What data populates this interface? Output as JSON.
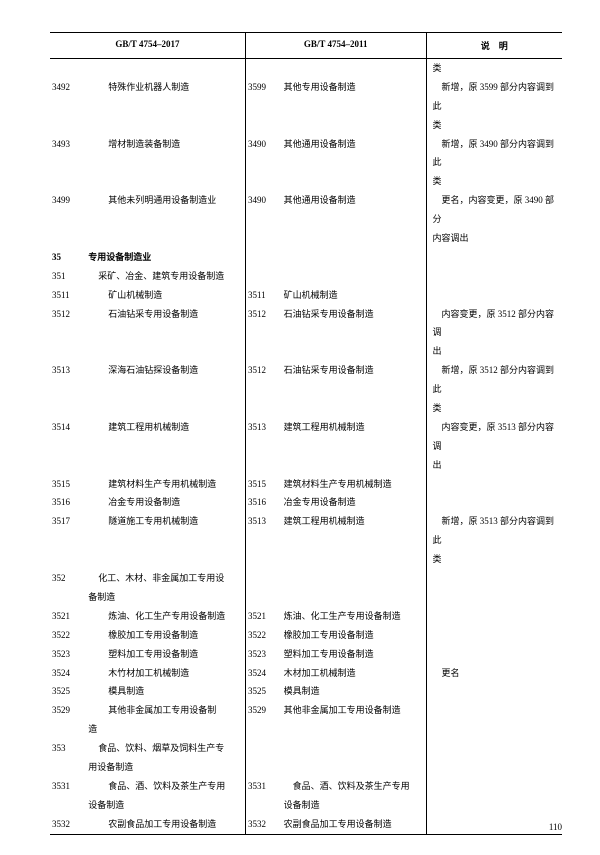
{
  "headers": {
    "h2017": "GB/T 4754–2017",
    "h2011": "GB/T 4754–2011",
    "note": "说　明"
  },
  "rows": [
    {
      "c1": "",
      "n1": "",
      "c2": "",
      "n2": "",
      "note": "类",
      "i": 0
    },
    {
      "c1": "3492",
      "n1": "特殊作业机器人制造",
      "c2": "3599",
      "n2": "其他专用设备制造",
      "note": "　新增，原 3599 部分内容调到此",
      "i": 2
    },
    {
      "c1": "",
      "n1": "",
      "c2": "",
      "n2": "",
      "note": "类",
      "i": 0
    },
    {
      "c1": "3493",
      "n1": "增材制造装备制造",
      "c2": "3490",
      "n2": "其他通用设备制造",
      "note": "　新增，原 3490 部分内容调到此",
      "i": 2
    },
    {
      "c1": "",
      "n1": "",
      "c2": "",
      "n2": "",
      "note": "类",
      "i": 0
    },
    {
      "c1": "3499",
      "n1": "其他未列明通用设备制造业",
      "c2": "3490",
      "n2": "其他通用设备制造",
      "note": "　更名，内容变更，原 3490 部分",
      "i": 2
    },
    {
      "c1": "",
      "n1": "",
      "c2": "",
      "n2": "",
      "note": "内容调出",
      "i": 0
    },
    {
      "c1": "35",
      "n1": "专用设备制造业",
      "c2": "",
      "n2": "",
      "note": "",
      "bold": true,
      "i": 0
    },
    {
      "c1": "351",
      "n1": "采矿、冶金、建筑专用设备制造",
      "c2": "",
      "n2": "",
      "note": "",
      "i": 1
    },
    {
      "c1": "3511",
      "n1": "矿山机械制造",
      "c2": "3511",
      "n2": "矿山机械制造",
      "note": "",
      "i": 2
    },
    {
      "c1": "3512",
      "n1": "石油钻采专用设备制造",
      "c2": "3512",
      "n2": "石油钻采专用设备制造",
      "note": "　内容变更，原 3512 部分内容调",
      "i": 2
    },
    {
      "c1": "",
      "n1": "",
      "c2": "",
      "n2": "",
      "note": "出",
      "i": 0
    },
    {
      "c1": "3513",
      "n1": "深海石油钻探设备制造",
      "c2": "3512",
      "n2": "石油钻采专用设备制造",
      "note": "　新增，原 3512 部分内容调到此",
      "i": 2
    },
    {
      "c1": "",
      "n1": "",
      "c2": "",
      "n2": "",
      "note": "类",
      "i": 0
    },
    {
      "c1": "3514",
      "n1": "建筑工程用机械制造",
      "c2": "3513",
      "n2": "建筑工程用机械制造",
      "note": "　内容变更，原 3513 部分内容调",
      "i": 2
    },
    {
      "c1": "",
      "n1": "",
      "c2": "",
      "n2": "",
      "note": "出",
      "i": 0
    },
    {
      "c1": "3515",
      "n1": "建筑材料生产专用机械制造",
      "c2": "3515",
      "n2": "建筑材料生产专用机械制造",
      "note": "",
      "i": 2
    },
    {
      "c1": "3516",
      "n1": "冶金专用设备制造",
      "c2": "3516",
      "n2": "冶金专用设备制造",
      "note": "",
      "i": 2
    },
    {
      "c1": "3517",
      "n1": "隧道施工专用机械制造",
      "c2": "3513",
      "n2": "建筑工程用机械制造",
      "note": "　新增，原 3513 部分内容调到此",
      "i": 2
    },
    {
      "c1": "",
      "n1": "",
      "c2": "",
      "n2": "",
      "note": "类",
      "i": 0
    },
    {
      "c1": "352",
      "n1": "化工、木材、非金属加工专用设",
      "c2": "",
      "n2": "",
      "note": "",
      "i": 1
    },
    {
      "c1": "",
      "n1": "备制造",
      "c2": "",
      "n2": "",
      "note": "",
      "i": 1,
      "cont": true
    },
    {
      "c1": "3521",
      "n1": "炼油、化工生产专用设备制造",
      "c2": "3521",
      "n2": "炼油、化工生产专用设备制造",
      "note": "",
      "i": 2
    },
    {
      "c1": "3522",
      "n1": "橡胶加工专用设备制造",
      "c2": "3522",
      "n2": "橡胶加工专用设备制造",
      "note": "",
      "i": 2
    },
    {
      "c1": "3523",
      "n1": "塑料加工专用设备制造",
      "c2": "3523",
      "n2": "塑料加工专用设备制造",
      "note": "",
      "i": 2
    },
    {
      "c1": "3524",
      "n1": "木竹材加工机械制造",
      "c2": "3524",
      "n2": "木材加工机械制造",
      "note": "　更名",
      "i": 2
    },
    {
      "c1": "3525",
      "n1": "模具制造",
      "c2": "3525",
      "n2": "模具制造",
      "note": "",
      "i": 2
    },
    {
      "c1": "3529",
      "n1": "其他非金属加工专用设备制",
      "c2": "3529",
      "n2": "其他非金属加工专用设备制造",
      "note": "",
      "i": 2
    },
    {
      "c1": "",
      "n1": "造",
      "c2": "",
      "n2": "",
      "note": "",
      "i": 2,
      "cont": true
    },
    {
      "c1": "353",
      "n1": "食品、饮料、烟草及饲料生产专",
      "c2": "",
      "n2": "",
      "note": "",
      "i": 1
    },
    {
      "c1": "",
      "n1": "用设备制造",
      "c2": "",
      "n2": "",
      "note": "",
      "i": 1,
      "cont": true
    },
    {
      "c1": "3531",
      "n1": "食品、酒、饮料及茶生产专用",
      "c2": "3531",
      "n2": "　食品、酒、饮料及茶生产专用",
      "note": "",
      "i": 2
    },
    {
      "c1": "",
      "n1": "设备制造",
      "c2": "",
      "n2": "设备制造",
      "note": "",
      "i": 2,
      "cont": true
    },
    {
      "c1": "3532",
      "n1": "农副食品加工专用设备制造",
      "c2": "3532",
      "n2": "农副食品加工专用设备制造",
      "note": "",
      "i": 2
    }
  ],
  "pageNumber": "110"
}
